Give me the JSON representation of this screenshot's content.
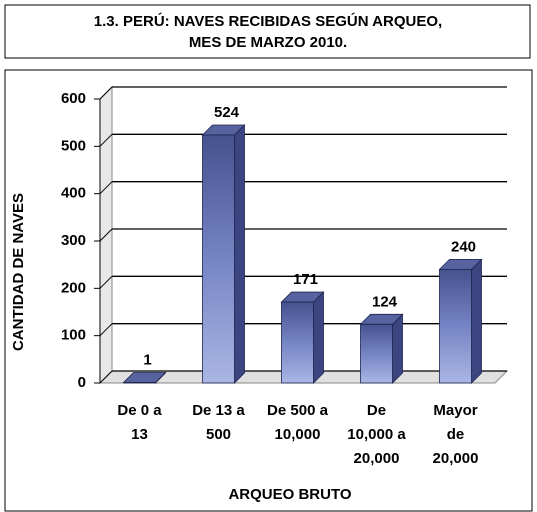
{
  "chart_data": {
    "type": "bar3d",
    "title": [
      "1.3. PERÚ: NAVES RECIBIDAS SEGÚN ARQUEO,",
      "MES DE MARZO 2010."
    ],
    "categories": [
      [
        "De 0 a",
        "13"
      ],
      [
        "De 13 a",
        "500"
      ],
      [
        "De 500 a",
        "10,000"
      ],
      [
        "De",
        "10,000 a",
        "20,000"
      ],
      [
        "Mayor",
        "de",
        "20,000"
      ]
    ],
    "values": [
      1,
      524,
      171,
      124,
      240
    ],
    "ylim": [
      0,
      600
    ],
    "yticks": [
      0,
      100,
      200,
      300,
      400,
      500,
      600
    ],
    "grid": true,
    "y_label": "CANTIDAD DE NAVES",
    "x_label": "ARQUEO BRUTO",
    "color": "#5d6cae"
  }
}
